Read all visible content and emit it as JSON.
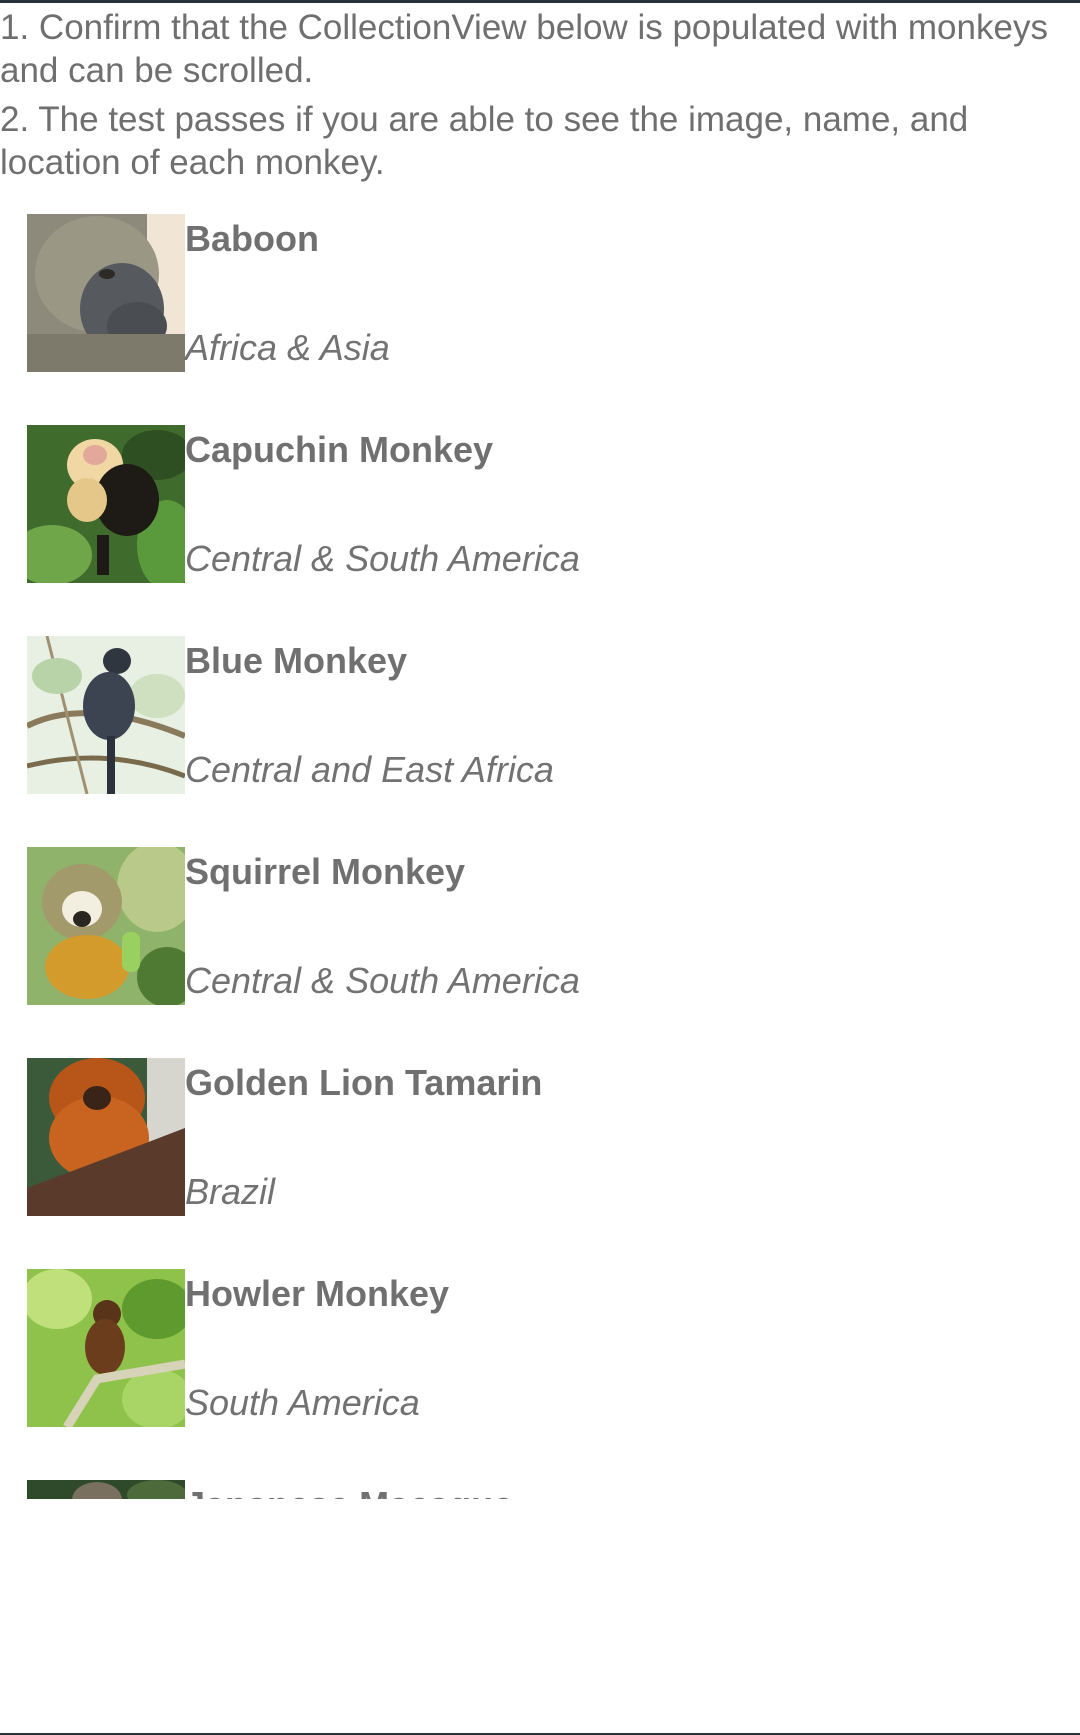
{
  "instructions": {
    "step1": "1. Confirm that the CollectionView below is populated with monkeys and can be scrolled.",
    "step2": "2. The test passes if you are able to see the image, name, and location of each monkey."
  },
  "monkeys": [
    {
      "name": "Baboon",
      "location": "Africa & Asia"
    },
    {
      "name": "Capuchin Monkey",
      "location": "Central & South America"
    },
    {
      "name": "Blue Monkey",
      "location": "Central and East Africa"
    },
    {
      "name": "Squirrel Monkey",
      "location": "Central & South America"
    },
    {
      "name": "Golden Lion Tamarin",
      "location": "Brazil"
    },
    {
      "name": "Howler Monkey",
      "location": "South America"
    },
    {
      "name": "Japanese Macaque",
      "location": ""
    }
  ]
}
